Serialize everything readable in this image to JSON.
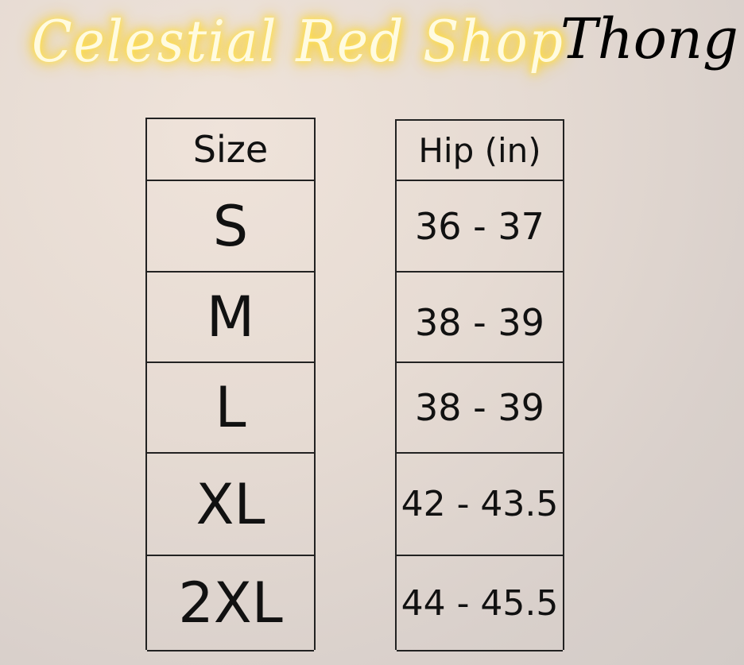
{
  "shop_name": "Celestial Red Shop",
  "product": "Thong",
  "colors": {
    "neon_text": "#fffbe0",
    "neon_glow": "#ffd21f",
    "lines": "#222222"
  },
  "size_table": {
    "header": "Size",
    "rows": [
      "S",
      "M",
      "L",
      "XL",
      "2XL"
    ]
  },
  "hip_table": {
    "header": "Hip (in)",
    "rows": [
      "36 - 37",
      "38 - 39",
      "38 - 39",
      "42 - 43.5",
      "44 - 45.5"
    ]
  }
}
